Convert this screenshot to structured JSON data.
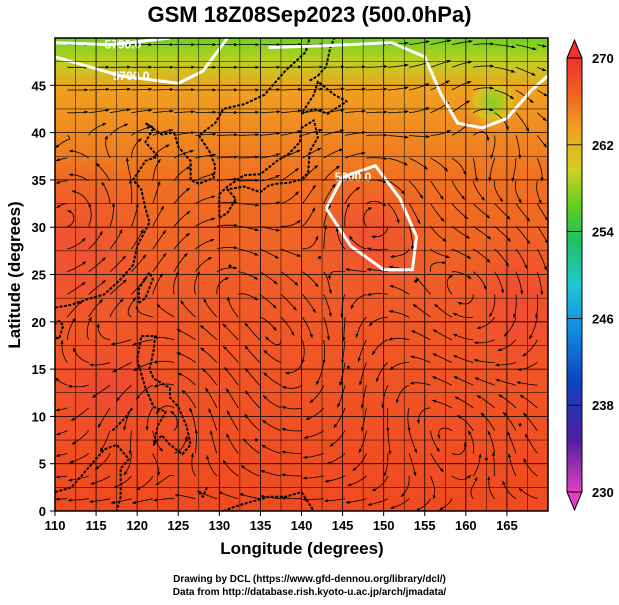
{
  "title": "GSM 18Z08Sep2023 (500.0hPa)",
  "credits": {
    "line1": "Drawing by DCL (https://www.gfd-dennou.org/library/dcl/)",
    "line2": "Data from http://database.rish.kyoto-u.ac.jp/arch/jmadata/"
  },
  "colors": {
    "colormap": [
      "#e040c0",
      "#3020a0",
      "#1060e0",
      "#20c0e0",
      "#20d080",
      "#50d020",
      "#c0d020",
      "#f0a020",
      "#f06020",
      "#f03030"
    ],
    "contour": "#ffffff",
    "coast": "#000000",
    "streamline": "#000000"
  },
  "chart_data": {
    "type": "heatmap",
    "title": "GSM 18Z08Sep2023 (500.0hPa)",
    "xlabel": "Longitude (degrees)",
    "ylabel": "Latitude  (degrees)",
    "xlim": [
      110,
      170
    ],
    "ylim": [
      0,
      50
    ],
    "xticks": [
      110,
      115,
      120,
      125,
      130,
      135,
      140,
      145,
      150,
      155,
      160,
      165
    ],
    "yticks": [
      0,
      5,
      10,
      15,
      20,
      25,
      30,
      35,
      40,
      45
    ],
    "grid": true,
    "colorbar": {
      "range": [
        230,
        270
      ],
      "ticks": [
        230,
        238,
        246,
        254,
        262,
        270
      ]
    },
    "contours": [
      {
        "label": "5700.0",
        "points": [
          [
            110,
            48
          ],
          [
            118,
            46
          ],
          [
            125,
            45.2
          ],
          [
            128,
            46.5
          ],
          [
            131,
            50
          ]
        ]
      },
      {
        "label": "5790.0",
        "points": [
          [
            110,
            49.5
          ],
          [
            117,
            49.3
          ],
          [
            124,
            50
          ]
        ]
      },
      {
        "label": "5900.0",
        "points": [
          [
            143,
            32
          ],
          [
            145,
            35.3
          ],
          [
            149,
            36.5
          ],
          [
            152,
            33
          ],
          [
            154,
            29
          ],
          [
            153.5,
            25.5
          ],
          [
            150,
            25.5
          ],
          [
            146,
            28
          ],
          [
            143,
            32
          ]
        ]
      },
      {
        "label": "",
        "points": [
          [
            136,
            49
          ],
          [
            143,
            49.2
          ],
          [
            151,
            49.5
          ],
          [
            155,
            48
          ],
          [
            157,
            44
          ],
          [
            159,
            41
          ],
          [
            162,
            40.5
          ],
          [
            165,
            41.5
          ],
          [
            168,
            44.5
          ],
          [
            170,
            46
          ]
        ]
      }
    ],
    "highs": [
      {
        "x": 162.5,
        "y": 45,
        "label": ""
      }
    ]
  }
}
